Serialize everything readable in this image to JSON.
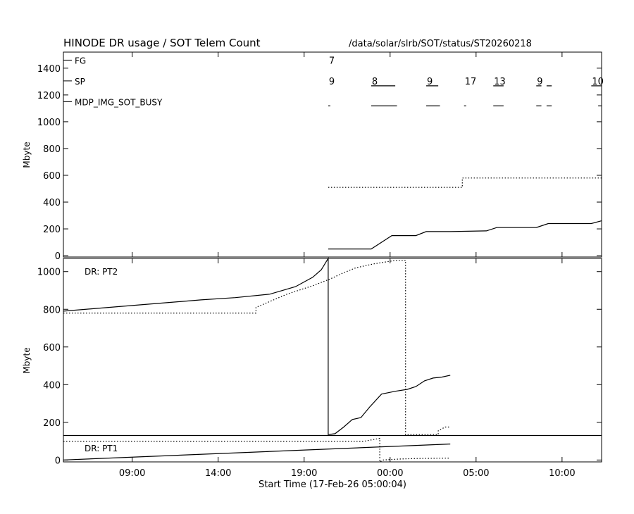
{
  "header": {
    "title": "HINODE DR usage / SOT Telem Count",
    "path": "/data/solar/slrb/SOT/status/ST20260218"
  },
  "x_axis": {
    "label": "Start Time (17-Feb-26 05:00:04)",
    "ticks": [
      {
        "hour": 4,
        "label": "09:00"
      },
      {
        "hour": 9,
        "label": "14:00"
      },
      {
        "hour": 14,
        "label": "19:00"
      },
      {
        "hour": 19,
        "label": "00:00"
      },
      {
        "hour": 24,
        "label": "05:00"
      },
      {
        "hour": 29,
        "label": "10:00"
      }
    ],
    "range_hours": [
      0,
      31.3
    ]
  },
  "chart_data": [
    {
      "type": "line",
      "panel": "top",
      "ylabel": "Mbyte",
      "ylim": [
        -10,
        1520
      ],
      "yticks": [
        0,
        200,
        400,
        600,
        800,
        1000,
        1200,
        1400
      ],
      "x_units": "hours since 05:00 17-Feb-26",
      "series": [
        {
          "style": "dotted",
          "x": [
            15.4,
            23.2,
            23.2,
            31.3
          ],
          "y": [
            510,
            510,
            580,
            580
          ]
        },
        {
          "style": "solid",
          "x": [
            15.4,
            17.9,
            18.5,
            19.1,
            20.5,
            21.1,
            22.5,
            24.6,
            25.2,
            27.5,
            28.2,
            30.7,
            31.3
          ],
          "y": [
            50,
            50,
            100,
            150,
            150,
            180,
            180,
            185,
            210,
            210,
            240,
            240,
            260
          ]
        }
      ],
      "annotations": {
        "rows": [
          {
            "label": "FG",
            "value": 1460
          },
          {
            "label": "SP",
            "value": 1305
          },
          {
            "label": "MDP_IMG_SOT_BUSY",
            "value": 1150
          }
        ],
        "counts": [
          {
            "row": "FG",
            "x": 15.4,
            "text": "7"
          },
          {
            "row": "SP",
            "x": 15.4,
            "text": "9"
          },
          {
            "row": "SP",
            "x": 17.9,
            "text": "8"
          },
          {
            "row": "SP",
            "x": 21.1,
            "text": "9"
          },
          {
            "row": "SP",
            "x": 23.3,
            "text": "17"
          },
          {
            "row": "SP",
            "x": 25.0,
            "text": "13"
          },
          {
            "row": "SP",
            "x": 27.5,
            "text": "9"
          },
          {
            "row": "SP",
            "x": 30.7,
            "text": "10"
          }
        ],
        "sp_underlines": [
          [
            17.9,
            19.3
          ],
          [
            21.1,
            21.8
          ],
          [
            25.0,
            25.6
          ],
          [
            27.5,
            27.8
          ],
          [
            28.1,
            28.4
          ],
          [
            30.7,
            31.3
          ]
        ],
        "busy_segments": [
          [
            15.4,
            15.5
          ],
          [
            17.9,
            19.4
          ],
          [
            21.1,
            21.9
          ],
          [
            23.3,
            23.4
          ],
          [
            25.0,
            25.6
          ],
          [
            27.5,
            27.8
          ],
          [
            28.1,
            28.4
          ],
          [
            31.1,
            31.3
          ]
        ]
      }
    },
    {
      "type": "line",
      "panel": "bottom",
      "ylabel": "Mbyte",
      "ylim": [
        -10,
        1070
      ],
      "yticks": [
        0,
        200,
        400,
        600,
        800,
        1000
      ],
      "x_units": "hours since 05:00 17-Feb-26",
      "legend_labels": [
        "DR: PT2",
        "DR: PT1"
      ],
      "series": [
        {
          "name": "DR: PT2",
          "style": "solid",
          "x": [
            0,
            2,
            4,
            6,
            8,
            10,
            12,
            13.5,
            14.5,
            15,
            15.4,
            15.4,
            15.8,
            16.3,
            16.8,
            17.3,
            17.8,
            18.5,
            19.3,
            20,
            20.5,
            21,
            21.5,
            22,
            22.5
          ],
          "y": [
            790,
            805,
            820,
            835,
            850,
            862,
            880,
            920,
            970,
            1010,
            1070,
            135,
            140,
            175,
            215,
            225,
            280,
            350,
            365,
            375,
            390,
            420,
            435,
            440,
            450
          ]
        },
        {
          "name": "DR: PT2 (dotted)",
          "style": "dotted",
          "x": [
            0,
            11.2,
            11.2,
            13,
            13.5,
            14.5,
            15.5,
            16.2,
            17,
            18,
            19,
            19.4,
            19.9,
            19.9,
            20.3,
            21.8,
            21.8,
            22.2,
            22.5
          ],
          "y": [
            780,
            780,
            810,
            880,
            895,
            925,
            960,
            990,
            1020,
            1040,
            1055,
            1060,
            1060,
            135,
            135,
            135,
            155,
            175,
            175
          ]
        },
        {
          "name": "DR: PT1",
          "style": "solid",
          "x": [
            0,
            22.5
          ],
          "y": [
            0,
            85
          ]
        },
        {
          "name": "DR: PT1 (dotted)",
          "style": "dotted",
          "x": [
            0,
            17.5,
            18.4,
            18.4,
            18.6,
            19.5,
            20.5,
            22.5
          ],
          "y": [
            100,
            100,
            115,
            -10,
            0,
            5,
            8,
            10
          ]
        },
        {
          "name": "boundary",
          "style": "solid",
          "x": [
            0,
            31.3
          ],
          "y": [
            130,
            130
          ]
        }
      ]
    }
  ]
}
